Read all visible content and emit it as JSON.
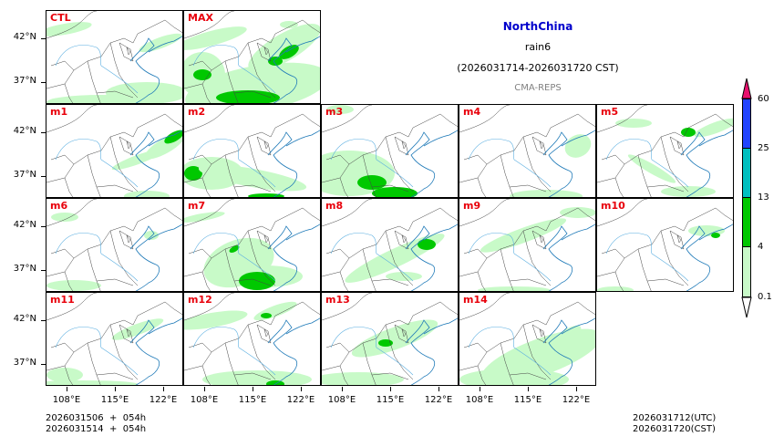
{
  "chart_data": {
    "type": "heatmap",
    "title": "NorthChina",
    "subtitle": "rain6",
    "period": "(2026031714-2026031720 CST)",
    "model": "CMA-REPS",
    "panels": [
      "CTL",
      "MAX",
      "m1",
      "m2",
      "m3",
      "m4",
      "m5",
      "m6",
      "m7",
      "m8",
      "m9",
      "m10",
      "m11",
      "m12",
      "m13",
      "m14"
    ],
    "y_ticks": [
      "42°N",
      "37°N"
    ],
    "x_ticks": [
      "108°E",
      "115°E",
      "122°E"
    ],
    "colorbar": {
      "levels": [
        "0.1",
        "4",
        "13",
        "25",
        "60"
      ],
      "colors": [
        "#c8fac8",
        "#00c800",
        "#00c0c0",
        "#2244ff",
        "#e8106e"
      ],
      "extend": "both"
    },
    "grid": false
  },
  "header": {
    "region": "NorthChina",
    "variable": "rain6",
    "period": "(2026031714-2026031720 CST)",
    "model": "CMA-REPS"
  },
  "panels": [
    {
      "label": "CTL"
    },
    {
      "label": "MAX"
    },
    {
      "label": "m1"
    },
    {
      "label": "m2"
    },
    {
      "label": "m3"
    },
    {
      "label": "m4"
    },
    {
      "label": "m5"
    },
    {
      "label": "m6"
    },
    {
      "label": "m7"
    },
    {
      "label": "m8"
    },
    {
      "label": "m9"
    },
    {
      "label": "m10"
    },
    {
      "label": "m11"
    },
    {
      "label": "m12"
    },
    {
      "label": "m13"
    },
    {
      "label": "m14"
    }
  ],
  "axes": {
    "lat": [
      "42°N",
      "37°N"
    ],
    "lon": [
      "108°E",
      "115°E",
      "122°E"
    ]
  },
  "colorbar": {
    "labels": [
      "60",
      "25",
      "13",
      "4",
      "0.1"
    ]
  },
  "footer": {
    "init_line1": "2026031506  +  054h",
    "init_line2": "2026031514  +  054h",
    "valid_utc": "2026031712(UTC)",
    "valid_cst": "2026031720(CST)"
  }
}
